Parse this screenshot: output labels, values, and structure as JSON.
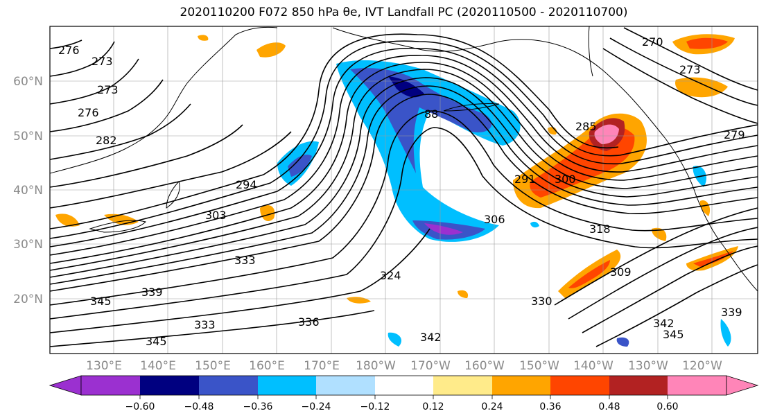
{
  "title": "2020110200 F072 850 hPa θe, IVT Landfall PC (2020110500 - 2020110700)",
  "map": {
    "lat_labels": [
      "60°N",
      "50°N",
      "40°N",
      "30°N",
      "20°N"
    ],
    "lon_labels": [
      "130°E",
      "140°E",
      "150°E",
      "160°E",
      "170°E",
      "180°W",
      "170°W",
      "160°W",
      "150°W",
      "140°W",
      "130°W",
      "120°W"
    ],
    "contour_labels": [
      "276",
      "273",
      "273",
      "276",
      "282",
      "294",
      "303",
      "333",
      "339",
      "345",
      "336",
      "333",
      "324",
      "345",
      "342",
      "306",
      "291",
      "300",
      "285",
      "318",
      "309",
      "330",
      "342",
      "345",
      "339",
      "270",
      "273",
      "279",
      "88"
    ]
  },
  "colorbar": {
    "colors": [
      "#9b30d0",
      "#000080",
      "#3a54c8",
      "#00bfff",
      "#b0e0ff",
      "#ffffff",
      "#ffeb8a",
      "#ffa500",
      "#ff4500",
      "#b22222",
      "#ff85b8"
    ],
    "tick_labels": [
      "−0.60",
      "−0.48",
      "−0.36",
      "−0.24",
      "−0.12",
      "0.12",
      "0.24",
      "0.36",
      "0.48",
      "0.60"
    ]
  }
}
